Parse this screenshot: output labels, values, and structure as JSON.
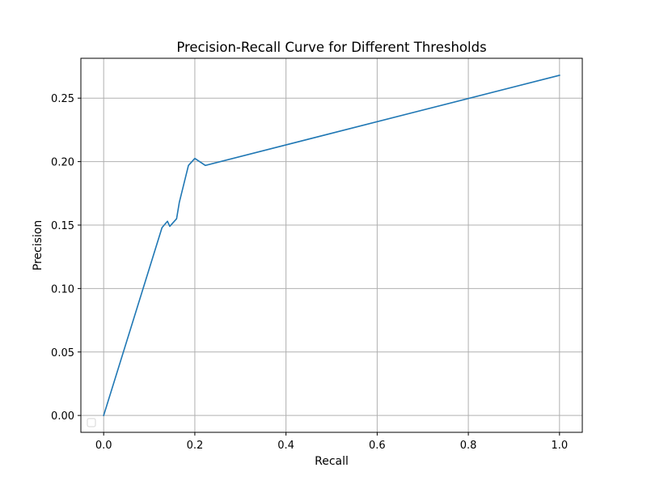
{
  "chart_data": {
    "type": "line",
    "title": "Precision-Recall Curve for Different Thresholds",
    "xlabel": "Recall",
    "ylabel": "Precision",
    "xlim": [
      -0.05,
      1.05
    ],
    "ylim": [
      -0.0133,
      0.2814
    ],
    "xticks": [
      0.0,
      0.2,
      0.4,
      0.6,
      0.8,
      1.0
    ],
    "xtick_labels": [
      "0.0",
      "0.2",
      "0.4",
      "0.6",
      "0.8",
      "1.0"
    ],
    "yticks": [
      0.0,
      0.05,
      0.1,
      0.15,
      0.2,
      0.25
    ],
    "ytick_labels": [
      "0.00",
      "0.05",
      "0.10",
      "0.15",
      "0.20",
      "0.25"
    ],
    "grid": true,
    "legend": {
      "placement": "lower-left",
      "entries": []
    },
    "series": [
      {
        "color": "#1f77b4",
        "x": [
          0.0,
          0.128,
          0.14,
          0.145,
          0.16,
          0.166,
          0.186,
          0.2,
          0.223,
          1.0
        ],
        "y": [
          0.0,
          0.148,
          0.153,
          0.149,
          0.155,
          0.168,
          0.197,
          0.2025,
          0.197,
          0.268
        ]
      }
    ]
  }
}
